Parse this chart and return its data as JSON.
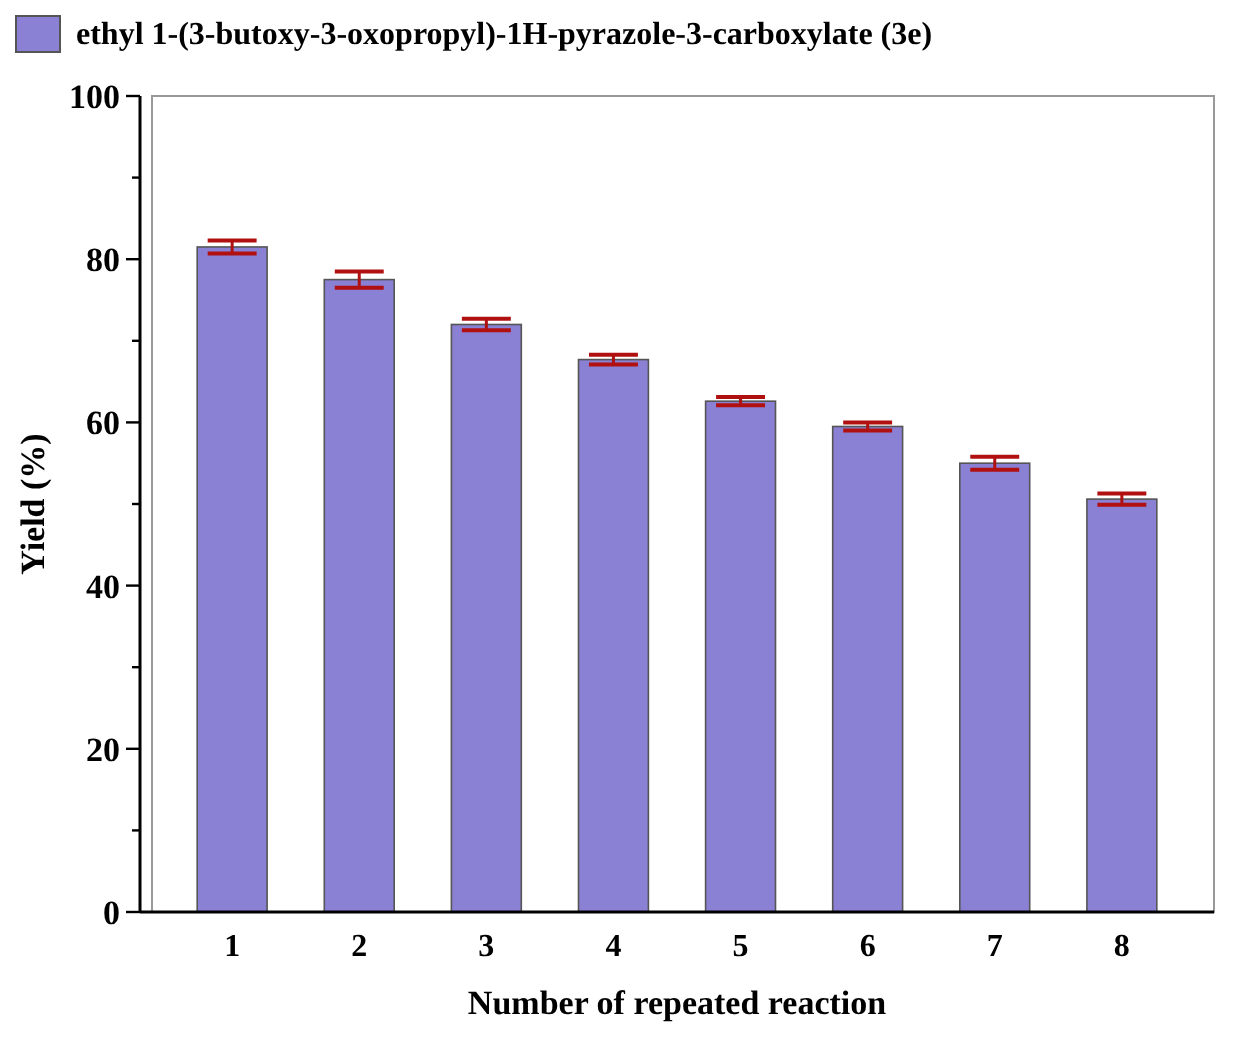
{
  "chart_data": {
    "type": "bar",
    "xlabel": "Number of repeated reaction",
    "ylabel": "Yield (%)",
    "categories": [
      "1",
      "2",
      "3",
      "4",
      "5",
      "6",
      "7",
      "8"
    ],
    "series": [
      {
        "name": "ethyl 1-(3-butoxy-3-oxopropyl)-1H-pyrazole-3-carboxylate (3e)",
        "color": "#8a80d4",
        "values": [
          81.5,
          77.5,
          72,
          67.7,
          62.6,
          59.5,
          55,
          50.6
        ],
        "errors": [
          0.8,
          1,
          0.7,
          0.6,
          0.5,
          0.5,
          0.8,
          0.7
        ]
      }
    ],
    "ylim": [
      0,
      100
    ],
    "yticks": [
      0,
      {
        "value": 10,
        "label": null
      },
      20,
      {
        "value": 30,
        "label": null
      },
      40,
      {
        "value": 50,
        "label": null
      },
      60,
      {
        "value": 70,
        "label": null
      },
      80,
      {
        "value": 90,
        "label": null
      },
      100
    ],
    "grid": false,
    "legend": "top left"
  }
}
